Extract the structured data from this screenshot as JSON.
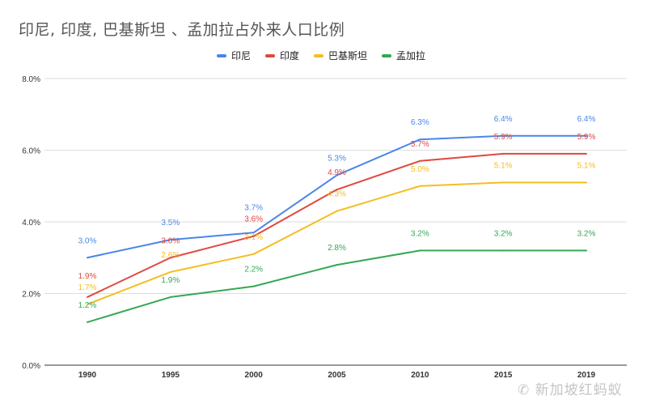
{
  "chart_data": {
    "type": "line",
    "title": "印尼, 印度, 巴基斯坦 、孟加拉占外来人口比例",
    "categories": [
      "1990",
      "1995",
      "2000",
      "2005",
      "2010",
      "2015",
      "2019"
    ],
    "ylim": [
      0,
      8
    ],
    "yticks": [
      "0.0%",
      "2.0%",
      "4.0%",
      "6.0%",
      "8.0%"
    ],
    "ytick_values": [
      0,
      2,
      4,
      6,
      8
    ],
    "grid": true,
    "legend_position": "top",
    "data_labels": true,
    "series": [
      {
        "name": "印尼",
        "color": "#4a86e8",
        "values": [
          3.0,
          3.5,
          3.7,
          5.3,
          6.3,
          6.4,
          6.4
        ],
        "labels": [
          "3.0%",
          "3.5%",
          "3.7%",
          "5.3%",
          "6.3%",
          "6.4%",
          "6.4%"
        ]
      },
      {
        "name": "印度",
        "color": "#e0483e",
        "values": [
          1.9,
          3.0,
          3.6,
          4.9,
          5.7,
          5.9,
          5.9
        ],
        "labels": [
          "1.9%",
          "3.0%",
          "3.6%",
          "4.9%",
          "5.7%",
          "5.9%",
          "5.9%"
        ]
      },
      {
        "name": "巴基斯坦",
        "color": "#f5bd1f",
        "values": [
          1.7,
          2.6,
          3.1,
          4.3,
          5.0,
          5.1,
          5.1
        ],
        "labels": [
          "1.7%",
          "2.6%",
          "3.1%",
          "4.3%",
          "5.0%",
          "5.1%",
          "5.1%"
        ]
      },
      {
        "name": "孟加拉",
        "color": "#34a853",
        "values": [
          1.2,
          1.9,
          2.2,
          2.8,
          3.2,
          3.2,
          3.2
        ],
        "labels": [
          "1.2%",
          "1.9%",
          "2.2%",
          "2.8%",
          "3.2%",
          "3.2%",
          "3.2%"
        ]
      }
    ]
  },
  "watermark": "新加坡红蚂蚁"
}
